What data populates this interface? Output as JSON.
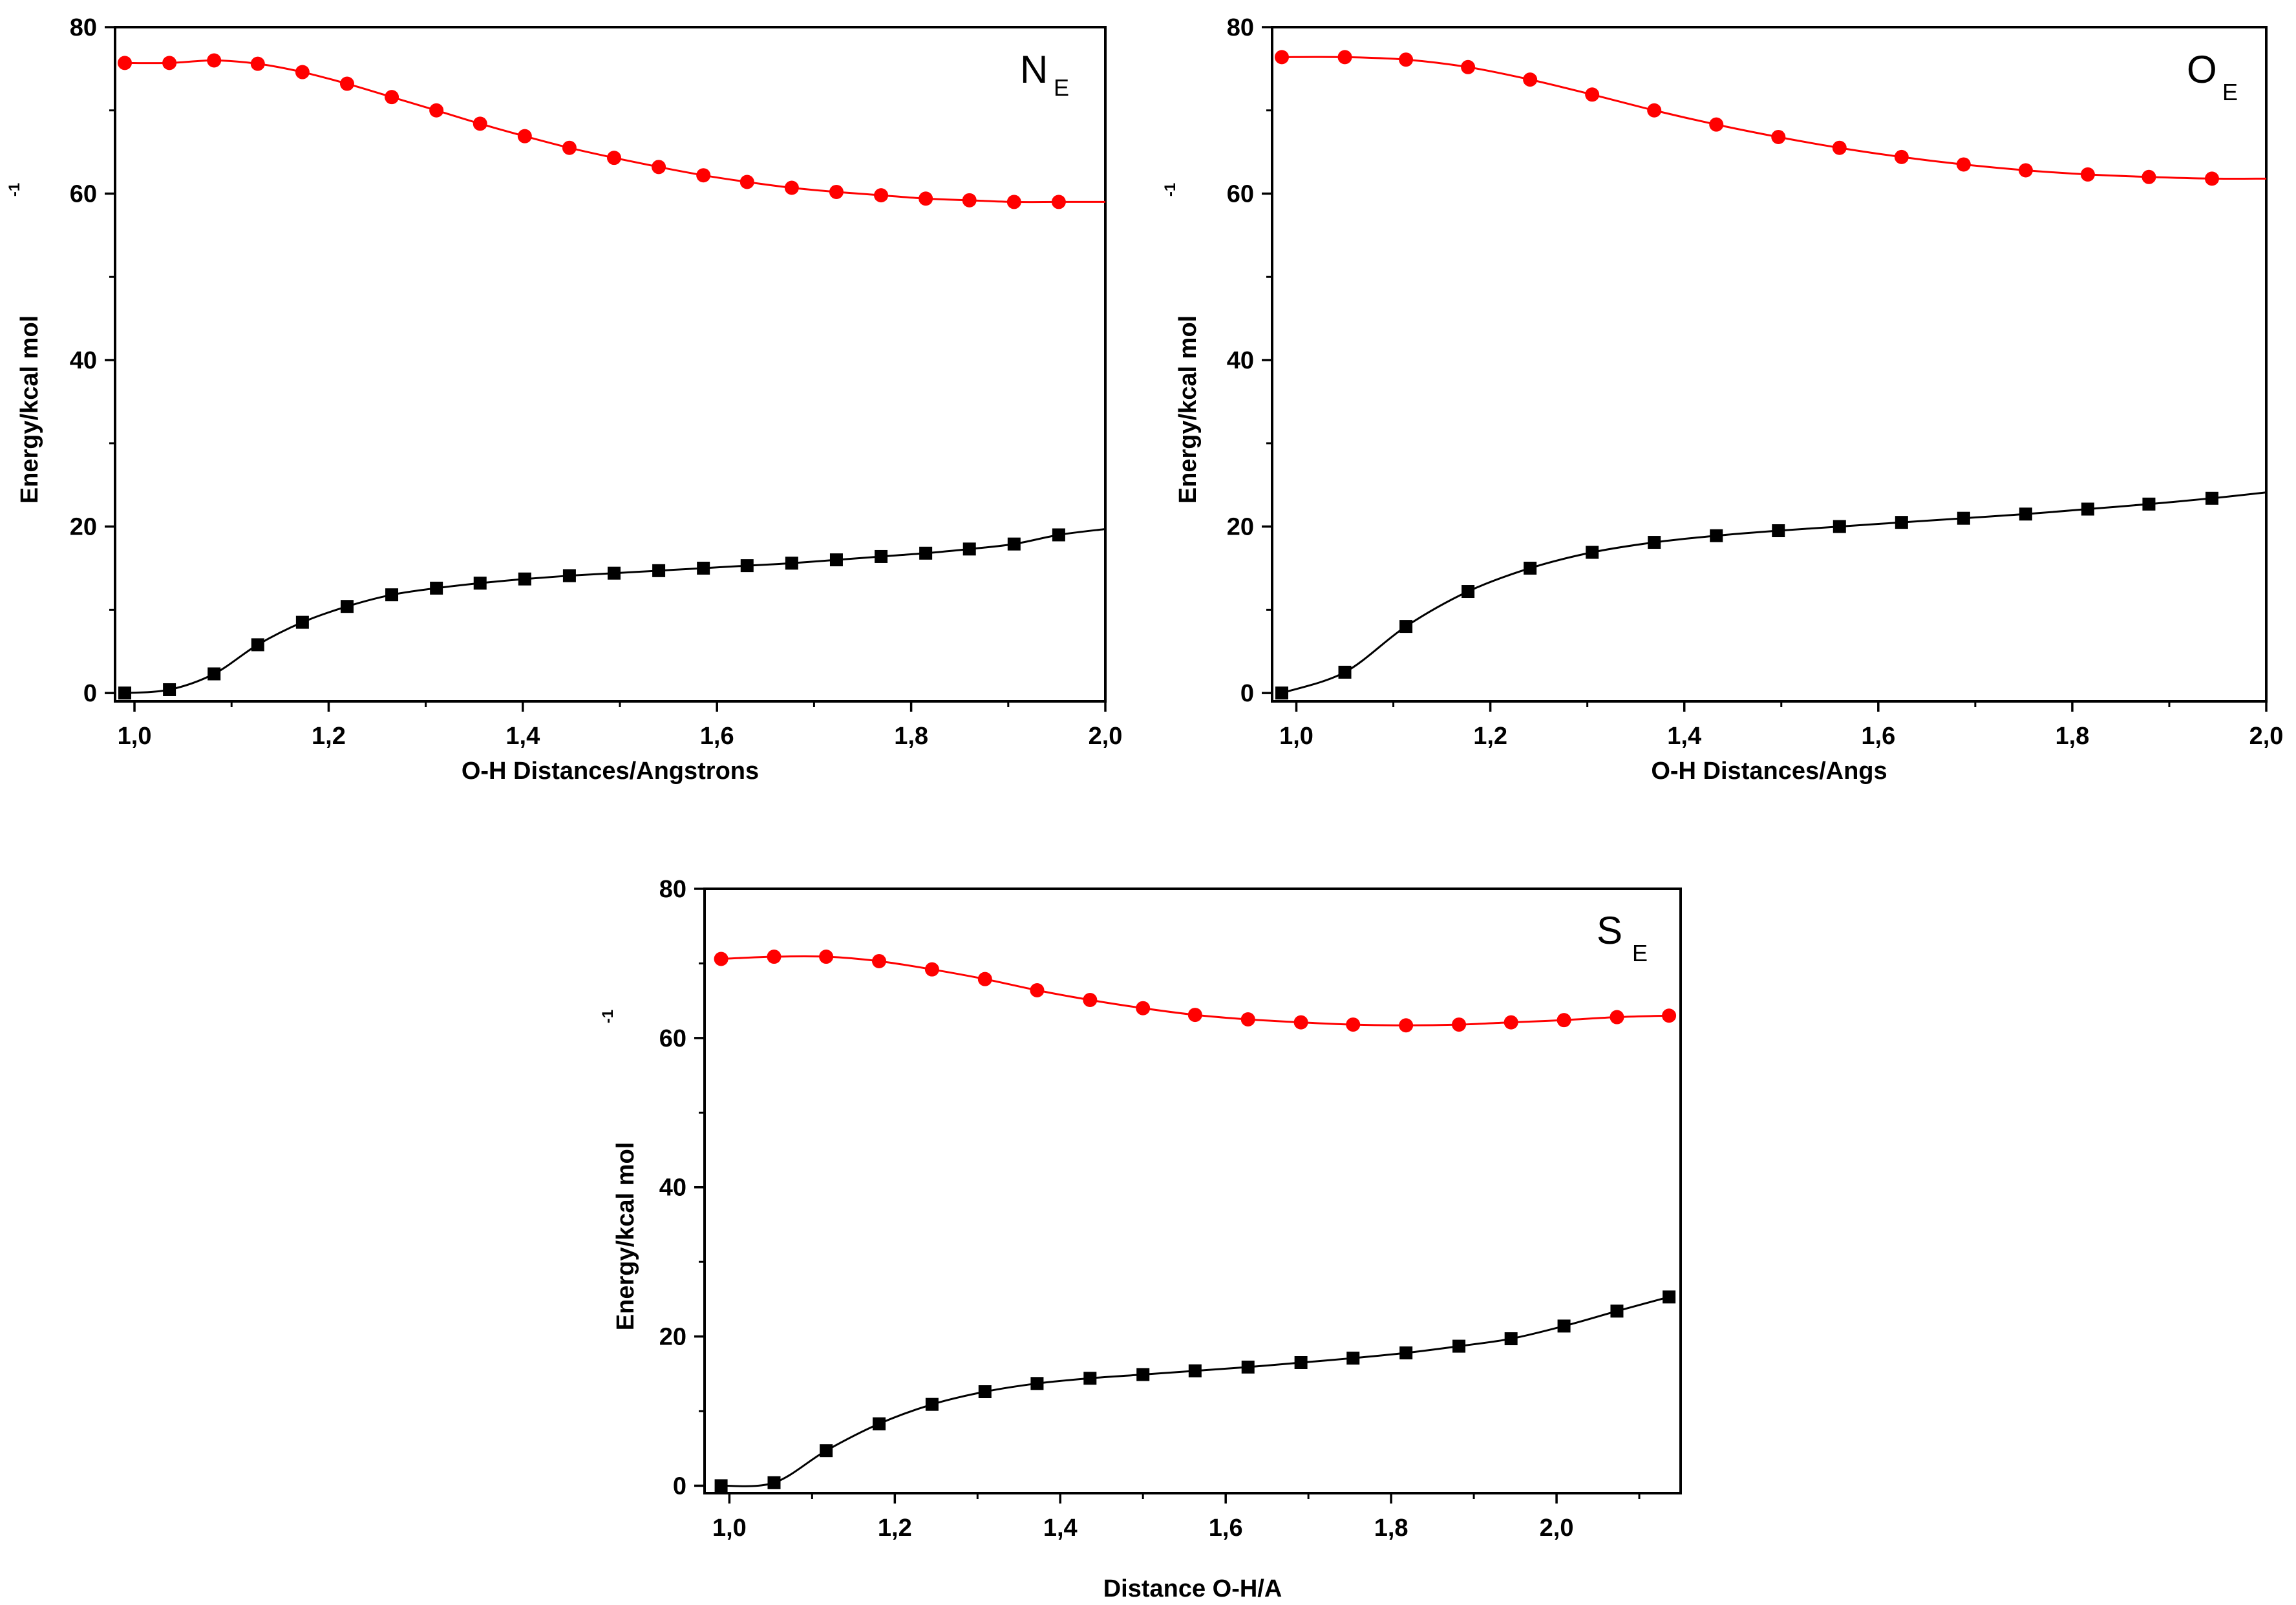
{
  "chart_data": [
    {
      "type": "line",
      "panel_label": "N",
      "panel_label_sub": "E",
      "xlabel": "O-H Distances/Angstrons",
      "ylabel": "Energy/kcal mol",
      "ylabel_superscript": "-1",
      "xlim": [
        0.98,
        2.0
      ],
      "ylim": [
        -1,
        80
      ],
      "xticks": [
        1.0,
        1.2,
        1.4,
        1.6,
        1.8,
        2.0
      ],
      "xtick_labels": [
        "1,0",
        "1,2",
        "1,4",
        "1,6",
        "1,8",
        "2,0"
      ],
      "yticks": [
        0,
        20,
        40,
        60,
        80
      ],
      "ytick_labels": [
        "0",
        "20",
        "40",
        "60",
        "80"
      ],
      "line_end_x": 2.0,
      "series": [
        {
          "name": "upper",
          "marker": "circle",
          "color": "#ff0000",
          "x": [
            0.99,
            1.036,
            1.082,
            1.127,
            1.173,
            1.219,
            1.265,
            1.311,
            1.356,
            1.402,
            1.448,
            1.494,
            1.54,
            1.586,
            1.631,
            1.677,
            1.723,
            1.769,
            1.815,
            1.86,
            1.906,
            1.952
          ],
          "values": [
            75.7,
            75.7,
            76.0,
            75.6,
            74.6,
            73.2,
            71.6,
            70.0,
            68.4,
            66.9,
            65.5,
            64.3,
            63.2,
            62.2,
            61.4,
            60.7,
            60.2,
            59.8,
            59.4,
            59.2,
            59.0,
            59.0
          ],
          "end_value": 59.0
        },
        {
          "name": "lower",
          "marker": "square",
          "color": "#000000",
          "x": [
            0.99,
            1.036,
            1.082,
            1.127,
            1.173,
            1.219,
            1.265,
            1.311,
            1.356,
            1.402,
            1.448,
            1.494,
            1.54,
            1.586,
            1.631,
            1.677,
            1.723,
            1.769,
            1.815,
            1.86,
            1.906,
            1.952
          ],
          "values": [
            0.0,
            0.4,
            2.3,
            5.8,
            8.5,
            10.4,
            11.8,
            12.6,
            13.2,
            13.7,
            14.1,
            14.4,
            14.7,
            15.0,
            15.3,
            15.6,
            16.0,
            16.4,
            16.8,
            17.3,
            17.9,
            19.0
          ],
          "end_value": 19.7
        }
      ]
    },
    {
      "type": "line",
      "panel_label": "O",
      "panel_label_sub": "E",
      "xlabel": "O-H Distances/Angs",
      "ylabel": "Energy/kcal mol",
      "ylabel_superscript": "-1",
      "xlim": [
        0.975,
        2.0
      ],
      "ylim": [
        -1,
        80
      ],
      "xticks": [
        1.0,
        1.2,
        1.4,
        1.6,
        1.8,
        2.0
      ],
      "xtick_labels": [
        "1,0",
        "1,2",
        "1,4",
        "1,6",
        "1,8",
        "2,0"
      ],
      "yticks": [
        0,
        20,
        40,
        60,
        80
      ],
      "ytick_labels": [
        "0",
        "20",
        "40",
        "60",
        "80"
      ],
      "line_end_x": 2.0,
      "series": [
        {
          "name": "upper",
          "marker": "circle",
          "color": "#ff0000",
          "x": [
            0.985,
            1.05,
            1.113,
            1.177,
            1.241,
            1.305,
            1.369,
            1.433,
            1.497,
            1.56,
            1.624,
            1.688,
            1.752,
            1.816,
            1.879,
            1.944
          ],
          "values": [
            76.4,
            76.4,
            76.1,
            75.2,
            73.7,
            71.9,
            70.0,
            68.3,
            66.8,
            65.5,
            64.4,
            63.5,
            62.8,
            62.3,
            62.0,
            61.8
          ],
          "end_value": 61.8
        },
        {
          "name": "lower",
          "marker": "square",
          "color": "#000000",
          "x": [
            0.985,
            1.05,
            1.113,
            1.177,
            1.241,
            1.305,
            1.369,
            1.433,
            1.497,
            1.56,
            1.624,
            1.688,
            1.752,
            1.816,
            1.879,
            1.944
          ],
          "values": [
            0.0,
            2.5,
            8.0,
            12.2,
            15.0,
            16.9,
            18.1,
            18.9,
            19.5,
            20.0,
            20.5,
            21.0,
            21.5,
            22.1,
            22.7,
            23.4
          ],
          "end_value": 24.1
        }
      ]
    },
    {
      "type": "line",
      "panel_label": "S",
      "panel_label_sub": "E",
      "xlabel": "Distance O-H/A",
      "ylabel": "Energy/kcal mol",
      "ylabel_superscript": "-1",
      "xlim": [
        0.97,
        2.15
      ],
      "ylim": [
        -1,
        80
      ],
      "xticks": [
        1.0,
        1.2,
        1.4,
        1.6,
        1.8,
        2.0
      ],
      "xtick_labels": [
        "1,0",
        "1,2",
        "1,4",
        "1,6",
        "1,8",
        "2,0"
      ],
      "yticks": [
        0,
        20,
        40,
        60,
        80
      ],
      "ytick_labels": [
        "0",
        "20",
        "40",
        "60",
        "80"
      ],
      "line_end_x": 2.135,
      "series": [
        {
          "name": "upper",
          "marker": "circle",
          "color": "#ff0000",
          "x": [
            0.99,
            1.054,
            1.117,
            1.181,
            1.245,
            1.309,
            1.372,
            1.436,
            1.5,
            1.563,
            1.627,
            1.691,
            1.754,
            1.818,
            1.882,
            1.945,
            2.009,
            2.073,
            2.136
          ],
          "values": [
            70.6,
            70.9,
            70.9,
            70.3,
            69.2,
            67.9,
            66.4,
            65.1,
            64.0,
            63.1,
            62.5,
            62.1,
            61.8,
            61.7,
            61.8,
            62.1,
            62.4,
            62.8,
            63.0
          ],
          "end_value": 63.0
        },
        {
          "name": "lower",
          "marker": "square",
          "color": "#000000",
          "x": [
            0.99,
            1.054,
            1.117,
            1.181,
            1.245,
            1.309,
            1.372,
            1.436,
            1.5,
            1.563,
            1.627,
            1.691,
            1.754,
            1.818,
            1.882,
            1.945,
            2.009,
            2.073,
            2.136
          ],
          "values": [
            0.0,
            0.4,
            4.7,
            8.3,
            10.9,
            12.6,
            13.7,
            14.4,
            14.9,
            15.4,
            15.9,
            16.5,
            17.1,
            17.8,
            18.7,
            19.7,
            21.4,
            23.4,
            25.3
          ],
          "end_value": 25.3
        }
      ]
    }
  ]
}
